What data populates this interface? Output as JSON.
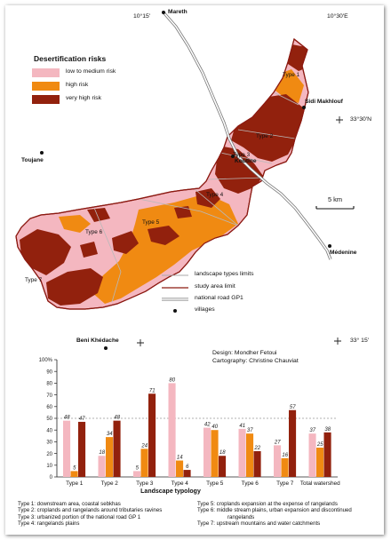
{
  "legend": {
    "title": "Desertification risks",
    "items": [
      {
        "label": "low to medium risk",
        "color": "#f4b7c0"
      },
      {
        "label": "high risk",
        "color": "#f08a12"
      },
      {
        "label": "very high risk",
        "color": "#92210d"
      }
    ]
  },
  "coords": {
    "top_left": "10°15'",
    "top_right": "10°30'E",
    "right_upper": "33°30'N",
    "right_lower": "33° 15'"
  },
  "towns": {
    "mareth": "Mareth",
    "sidi_makhlouf": "Sidi Makhlouf",
    "toujane": "Toujane",
    "koutine": "Koutine",
    "medenine": "Médenine",
    "beni_khedache": "Beni Khédache"
  },
  "type_labels": [
    "Type 1",
    "Type 2",
    "Type 3",
    "Type 4",
    "Type 5",
    "Type 6",
    "Type 7"
  ],
  "scale": "5 km",
  "line_legend": {
    "landscape": "landscape types limits",
    "study_area": "study area limit",
    "road": "national road GP1",
    "villages": "villages"
  },
  "credits": {
    "design": "Design: Mondher Fetoui",
    "cartography": "Cartography: Christine Chauviat"
  },
  "chart_data": {
    "type": "bar",
    "categories": [
      "Type 1",
      "Type 2",
      "Type 3",
      "Type 4",
      "Type 5",
      "Type 6",
      "Type 7",
      "Total watershed"
    ],
    "series": [
      {
        "name": "low to medium risk",
        "color": "#f4b7c0",
        "values": [
          48,
          18,
          5,
          80,
          42,
          41,
          27,
          37
        ]
      },
      {
        "name": "high risk",
        "color": "#f08a12",
        "values": [
          5,
          34,
          24,
          14,
          40,
          37,
          16,
          25
        ]
      },
      {
        "name": "very high risk",
        "color": "#92210d",
        "values": [
          47,
          48,
          71,
          6,
          18,
          22,
          57,
          38
        ]
      }
    ],
    "ylim": [
      0,
      100
    ],
    "yticks": [
      "100%",
      "90",
      "80",
      "70",
      "60",
      "50",
      "40",
      "30",
      "20",
      "10",
      "0"
    ],
    "reference_line": 50,
    "xlabel": "Landscape typology"
  },
  "captions_left": [
    "Type 1: downstream area, coastal sebkhas",
    "Type 2: croplands and rangelands around tributaries ravines",
    "Type 3: urbanized portion of the national road GP 1",
    "Type 4: rangelands plains"
  ],
  "captions_right": [
    "Type 5: croplands expansion at the expense of rangelands",
    "Type 6: middle stream plains, urban expansion and discontinued",
    "rangelands",
    "Type 7: upstream mountains and water catchments"
  ]
}
